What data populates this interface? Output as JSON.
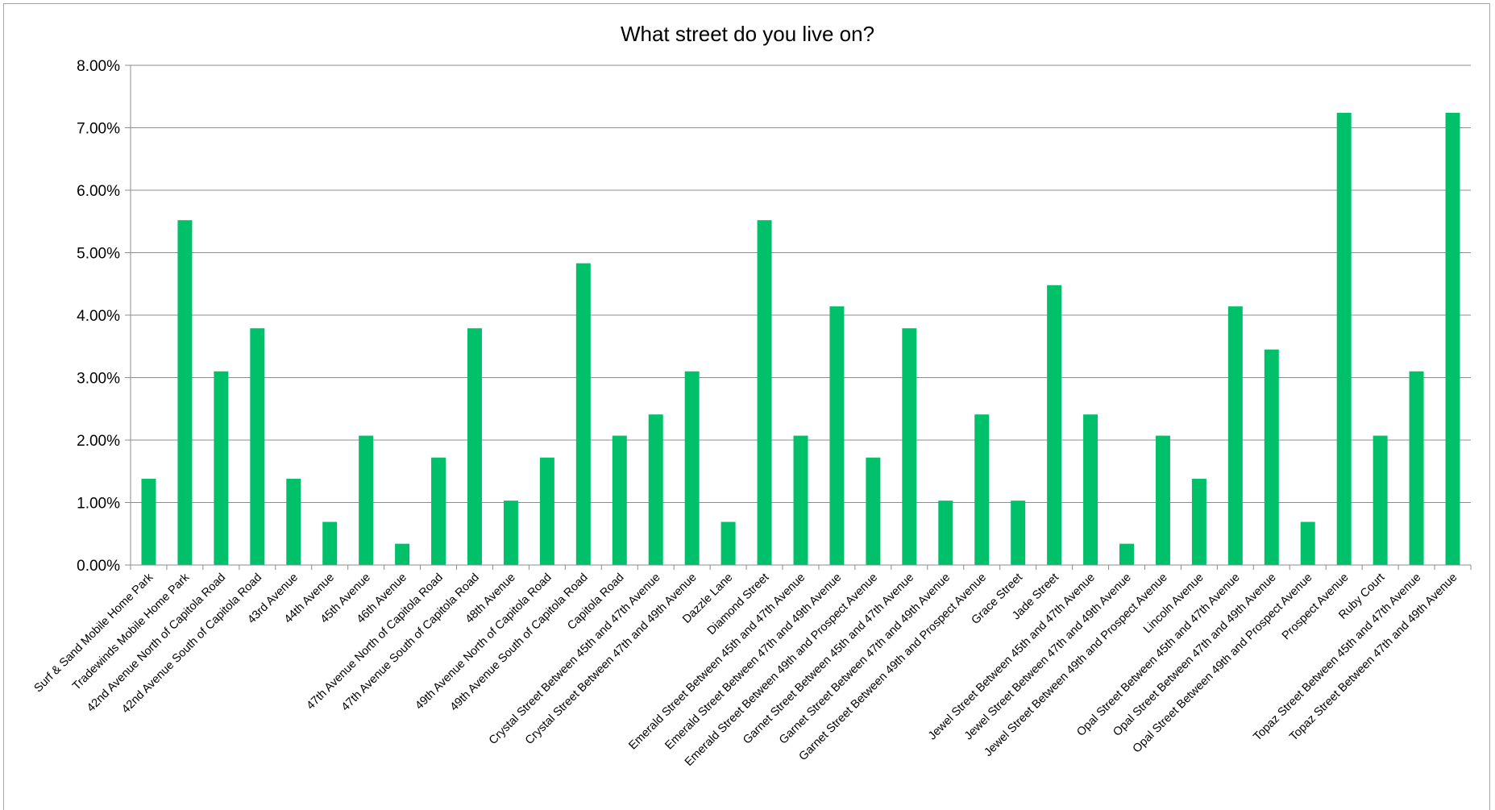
{
  "chart_data": {
    "type": "bar",
    "title": "What street do you live on?",
    "xlabel": "",
    "ylabel": "",
    "ylim": [
      0,
      8
    ],
    "yticks": [
      "0.00%",
      "1.00%",
      "2.00%",
      "3.00%",
      "4.00%",
      "5.00%",
      "6.00%",
      "7.00%",
      "8.00%"
    ],
    "grid": true,
    "legend": "none",
    "bar_color": "#00c06a",
    "categories": [
      "Surf & Sand Mobile Home Park",
      "Tradewinds Mobile Home Park",
      "42nd Avenue North of Capitola Road",
      "42nd Avenue South of Capitola Road",
      "43rd Avenue",
      "44th Avenue",
      "45th Avenue",
      "46th Avenue",
      "47th Avenue North of Capitola Road",
      "47th Avenue South of Capitola Road",
      "48th Avenue",
      "49th Avenue North of Capitola Road",
      "49th Avenue South of Capitola Road",
      "Capitola Road",
      "Crystal Street Between 45th and 47th Avenue",
      "Crystal Street Between 47th and 49th Avenue",
      "Dazzle Lane",
      "Diamond Street",
      "Emerald Street Between 45th and 47th Avenue",
      "Emerald Street Between 47th and 49th Avenue",
      "Emerald Street Between 49th and Prospect Avenue",
      "Garnet Street Between 45th and 47th Avenue",
      "Garnet Street Between 47th and 49th Avenue",
      "Garnet Street Between 49th and Prospect Avenue",
      "Grace Street",
      "Jade Street",
      "Jewel Street Between 45th and 47th Avenue",
      "Jewel Street Between 47th and 49th Avenue",
      "Jewel Street Between 49th and Prospect Avenue",
      "Lincoln Avenue",
      "Opal Street Between 45th and 47th Avenue",
      "Opal Street Between 47th and 49th Avenue",
      "Opal Street Between 49th and Prospect Avenue",
      "Prospect Avenue",
      "Ruby Court",
      "Topaz Street Between 45th and 47th Avenue",
      "Topaz Street Between 47th and 49th Avenue"
    ],
    "values": [
      1.38,
      5.52,
      3.1,
      3.79,
      1.38,
      0.69,
      2.07,
      0.34,
      1.72,
      3.79,
      1.03,
      1.72,
      4.83,
      2.07,
      2.41,
      3.1,
      0.69,
      5.52,
      2.07,
      4.14,
      1.72,
      3.79,
      1.03,
      2.41,
      1.03,
      4.48,
      2.41,
      0.34,
      2.07,
      1.38,
      4.14,
      3.45,
      0.69,
      7.24,
      2.07,
      3.1,
      7.24
    ]
  }
}
